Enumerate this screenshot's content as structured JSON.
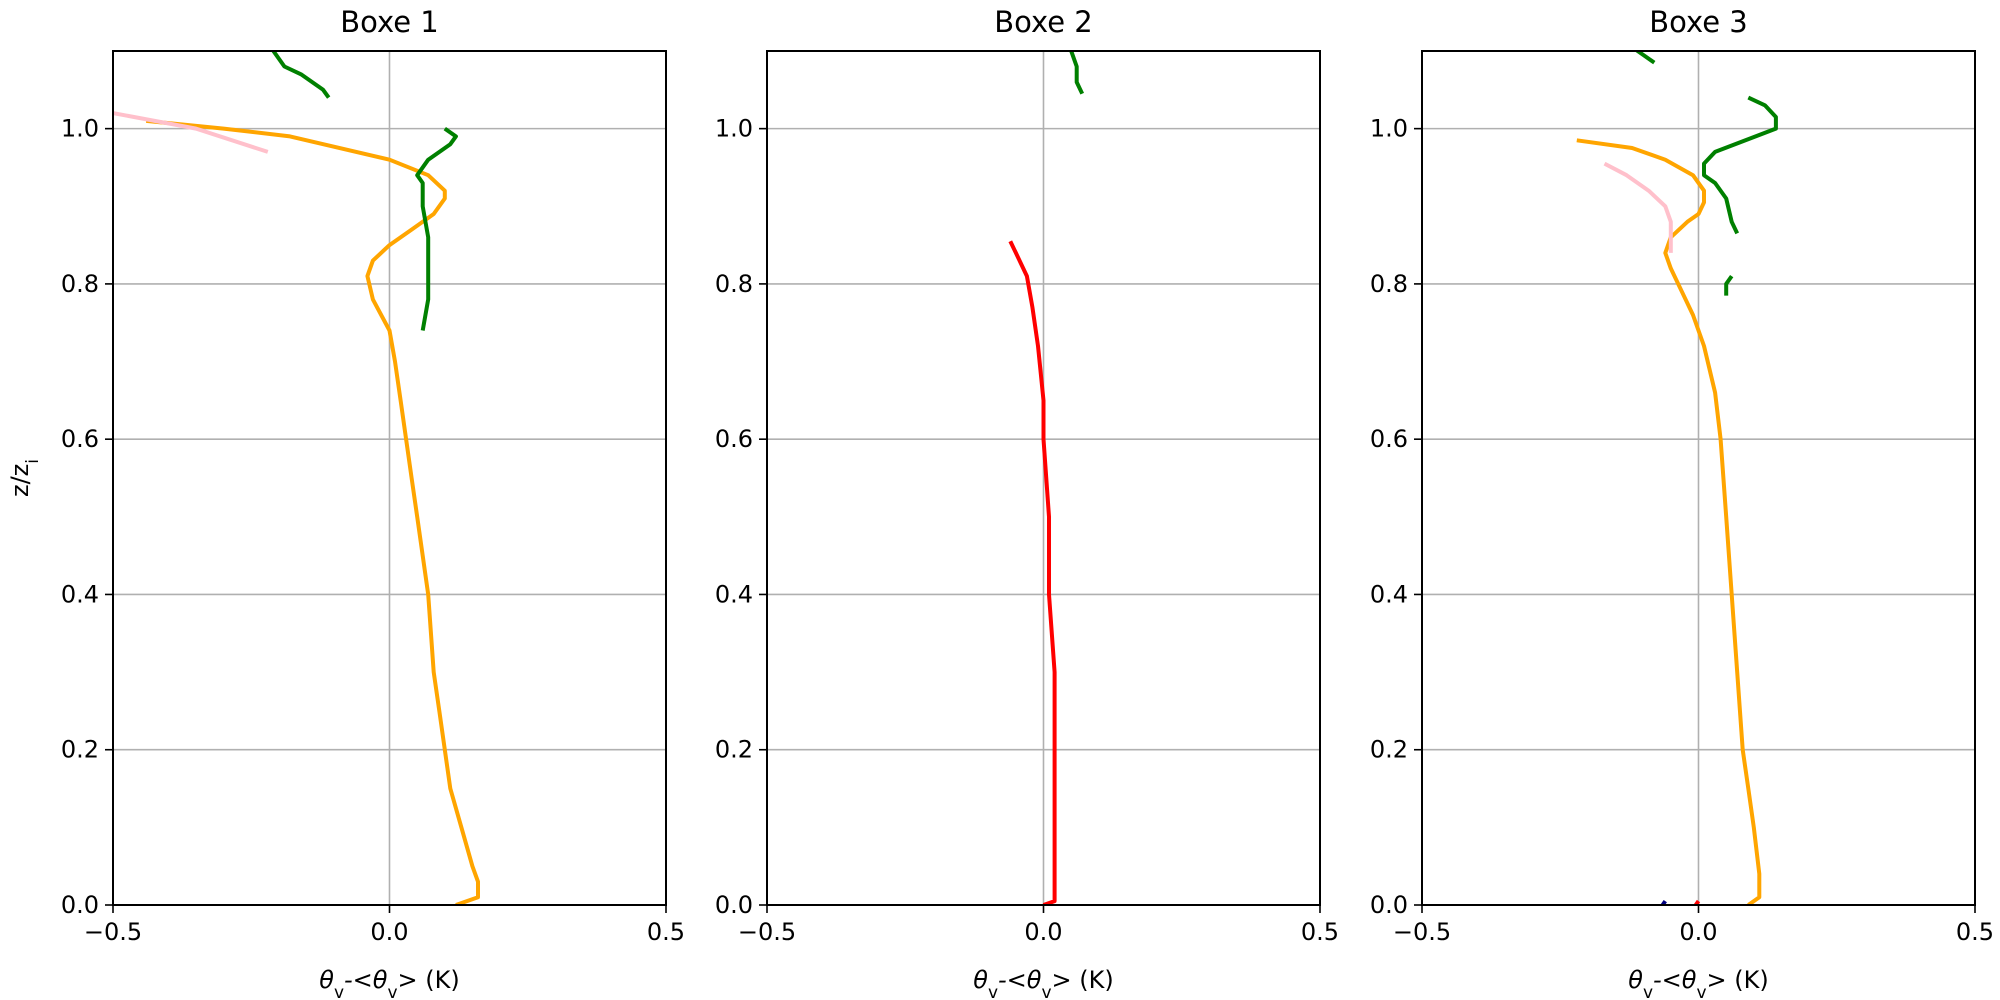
{
  "chart_data": [
    {
      "type": "line",
      "title": "Boxe 1",
      "xlabel": "θv-<θv> (K)",
      "ylabel": "z/zi",
      "xlim": [
        -0.5,
        0.5
      ],
      "ylim": [
        0.0,
        1.1
      ],
      "xticks": [
        -0.5,
        0.0,
        0.5
      ],
      "xtick_labels": [
        "−0.5",
        "0.0",
        "0.5"
      ],
      "yticks": [
        0.0,
        0.2,
        0.4,
        0.6,
        0.8,
        1.0
      ],
      "ytick_labels": [
        "0.0",
        "0.2",
        "0.4",
        "0.6",
        "0.8",
        "1.0"
      ],
      "grid": true,
      "series": [
        {
          "color": "#ffa500",
          "points": [
            [
              0.12,
              0.0
            ],
            [
              0.16,
              0.01
            ],
            [
              0.16,
              0.03
            ],
            [
              0.15,
              0.05
            ],
            [
              0.13,
              0.1
            ],
            [
              0.11,
              0.15
            ],
            [
              0.1,
              0.2
            ],
            [
              0.09,
              0.25
            ],
            [
              0.08,
              0.3
            ],
            [
              0.07,
              0.4
            ],
            [
              0.05,
              0.5
            ],
            [
              0.04,
              0.55
            ],
            [
              0.03,
              0.6
            ],
            [
              0.02,
              0.65
            ],
            [
              0.01,
              0.7
            ],
            [
              0.0,
              0.74
            ],
            [
              -0.03,
              0.78
            ],
            [
              -0.04,
              0.81
            ],
            [
              -0.03,
              0.83
            ],
            [
              0.0,
              0.85
            ],
            [
              0.04,
              0.87
            ],
            [
              0.08,
              0.89
            ],
            [
              0.1,
              0.91
            ],
            [
              0.1,
              0.92
            ],
            [
              0.07,
              0.94
            ],
            [
              0.0,
              0.96
            ],
            [
              -0.18,
              0.99
            ],
            [
              -0.3,
              1.0
            ],
            [
              -0.44,
              1.01
            ]
          ]
        },
        {
          "color": "#008000",
          "points": [
            [
              0.06,
              0.74
            ],
            [
              0.07,
              0.78
            ],
            [
              0.07,
              0.82
            ],
            [
              0.07,
              0.86
            ],
            [
              0.06,
              0.9
            ],
            [
              0.06,
              0.93
            ],
            [
              0.05,
              0.94
            ],
            [
              0.07,
              0.96
            ],
            [
              0.11,
              0.98
            ],
            [
              0.12,
              0.99
            ],
            [
              0.1,
              1.0
            ]
          ]
        },
        {
          "color": "#008000",
          "points": [
            [
              -0.11,
              1.04
            ],
            [
              -0.12,
              1.05
            ],
            [
              -0.16,
              1.07
            ],
            [
              -0.19,
              1.08
            ],
            [
              -0.21,
              1.1
            ]
          ]
        },
        {
          "color": "#ffc0cb",
          "points": [
            [
              -0.22,
              0.97
            ],
            [
              -0.35,
              1.0
            ],
            [
              -0.5,
              1.02
            ]
          ]
        }
      ]
    },
    {
      "type": "line",
      "title": "Boxe 2",
      "xlabel": "θv-<θv> (K)",
      "ylabel": "",
      "xlim": [
        -0.5,
        0.5
      ],
      "ylim": [
        0.0,
        1.1
      ],
      "xticks": [
        -0.5,
        0.0,
        0.5
      ],
      "xtick_labels": [
        "−0.5",
        "0.0",
        "0.5"
      ],
      "yticks": [
        0.0,
        0.2,
        0.4,
        0.6,
        0.8,
        1.0
      ],
      "ytick_labels": [
        "0.0",
        "0.2",
        "0.4",
        "0.6",
        "0.8",
        "1.0"
      ],
      "grid": true,
      "series": [
        {
          "color": "#ff0000",
          "points": [
            [
              0.0,
              0.0
            ],
            [
              0.02,
              0.005
            ],
            [
              0.02,
              0.02
            ],
            [
              0.02,
              0.1
            ],
            [
              0.02,
              0.2
            ],
            [
              0.02,
              0.3
            ],
            [
              0.01,
              0.4
            ],
            [
              0.01,
              0.5
            ],
            [
              0.0,
              0.6
            ],
            [
              0.0,
              0.65
            ],
            [
              -0.01,
              0.72
            ],
            [
              -0.02,
              0.77
            ],
            [
              -0.03,
              0.81
            ],
            [
              -0.05,
              0.84
            ],
            [
              -0.06,
              0.855
            ]
          ]
        },
        {
          "color": "#008000",
          "points": [
            [
              0.07,
              1.045
            ],
            [
              0.06,
              1.06
            ],
            [
              0.06,
              1.08
            ],
            [
              0.05,
              1.1
            ]
          ]
        }
      ]
    },
    {
      "type": "line",
      "title": "Boxe 3",
      "xlabel": "θv-<θv> (K)",
      "ylabel": "",
      "xlim": [
        -0.5,
        0.5
      ],
      "ylim": [
        0.0,
        1.1
      ],
      "xticks": [
        -0.5,
        0.0,
        0.5
      ],
      "xtick_labels": [
        "−0.5",
        "0.0",
        "0.5"
      ],
      "yticks": [
        0.0,
        0.2,
        0.4,
        0.6,
        0.8,
        1.0
      ],
      "ytick_labels": [
        "0.0",
        "0.2",
        "0.4",
        "0.6",
        "0.8",
        "1.0"
      ],
      "grid": true,
      "series": [
        {
          "color": "#ffa500",
          "points": [
            [
              0.09,
              0.0
            ],
            [
              0.11,
              0.01
            ],
            [
              0.11,
              0.04
            ],
            [
              0.1,
              0.1
            ],
            [
              0.09,
              0.15
            ],
            [
              0.08,
              0.2
            ],
            [
              0.07,
              0.3
            ],
            [
              0.06,
              0.4
            ],
            [
              0.05,
              0.5
            ],
            [
              0.04,
              0.6
            ],
            [
              0.03,
              0.66
            ],
            [
              0.01,
              0.72
            ],
            [
              -0.01,
              0.76
            ],
            [
              -0.03,
              0.79
            ],
            [
              -0.05,
              0.82
            ],
            [
              -0.06,
              0.84
            ],
            [
              -0.05,
              0.86
            ],
            [
              -0.02,
              0.88
            ],
            [
              0.0,
              0.89
            ],
            [
              0.01,
              0.905
            ],
            [
              0.01,
              0.92
            ],
            [
              -0.01,
              0.94
            ],
            [
              -0.06,
              0.96
            ],
            [
              -0.12,
              0.975
            ],
            [
              -0.22,
              0.985
            ]
          ]
        },
        {
          "color": "#ffc0cb",
          "points": [
            [
              -0.05,
              0.84
            ],
            [
              -0.05,
              0.86
            ],
            [
              -0.05,
              0.88
            ],
            [
              -0.06,
              0.9
            ],
            [
              -0.09,
              0.92
            ],
            [
              -0.13,
              0.94
            ],
            [
              -0.17,
              0.955
            ]
          ]
        },
        {
          "color": "#008000",
          "points": [
            [
              0.07,
              0.865
            ],
            [
              0.06,
              0.88
            ],
            [
              0.05,
              0.91
            ],
            [
              0.03,
              0.93
            ],
            [
              0.01,
              0.94
            ],
            [
              0.01,
              0.955
            ],
            [
              0.03,
              0.97
            ],
            [
              0.14,
              1.0
            ],
            [
              0.14,
              1.015
            ],
            [
              0.12,
              1.03
            ],
            [
              0.09,
              1.04
            ]
          ]
        },
        {
          "color": "#008000",
          "points": [
            [
              0.05,
              0.785
            ],
            [
              0.05,
              0.8
            ],
            [
              0.06,
              0.81
            ]
          ]
        },
        {
          "color": "#008000",
          "points": [
            [
              -0.08,
              1.085
            ],
            [
              -0.1,
              1.095
            ],
            [
              -0.13,
              1.11
            ]
          ]
        },
        {
          "color": "#ff0000",
          "points": [
            [
              -0.005,
              0.0
            ],
            [
              0.0,
              0.005
            ]
          ]
        },
        {
          "color": "#000080",
          "points": [
            [
              -0.065,
              0.0
            ],
            [
              -0.06,
              0.005
            ]
          ]
        }
      ]
    }
  ]
}
